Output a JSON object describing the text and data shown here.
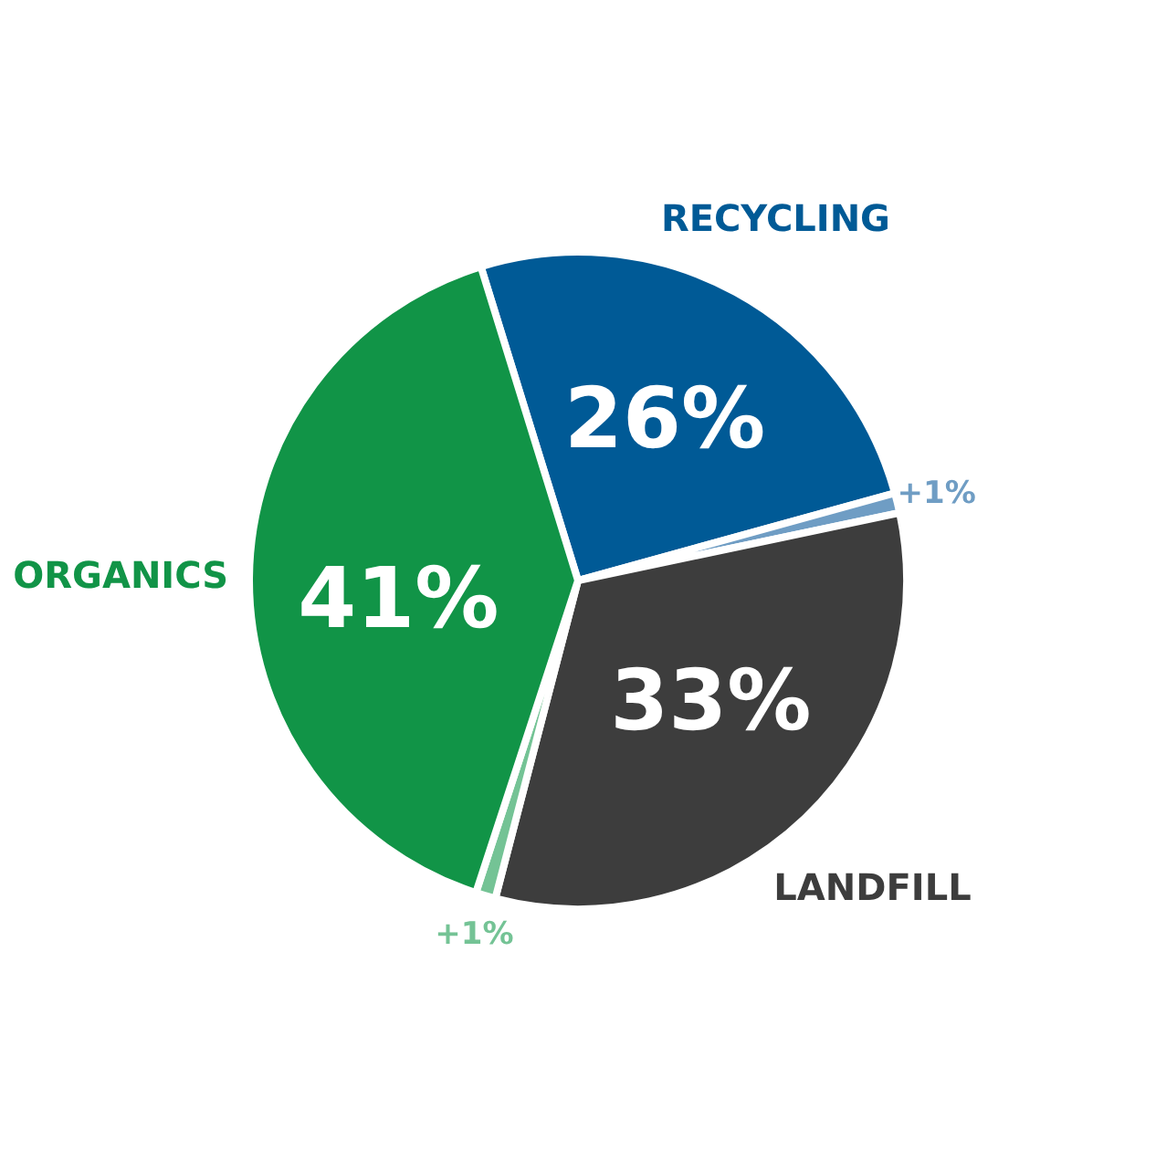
{
  "chart_data": {
    "type": "pie",
    "categories": [
      "RECYCLING",
      null,
      "LANDFILL",
      null,
      "ORGANICS"
    ],
    "values": [
      26,
      1,
      33,
      1,
      41
    ],
    "value_labels": [
      "26%",
      "+1%",
      "33%",
      "+1%",
      "41%"
    ],
    "colors": [
      "#005a96",
      "#6f9dc4",
      "#3d3d3d",
      "#74c395",
      "#119447"
    ]
  }
}
